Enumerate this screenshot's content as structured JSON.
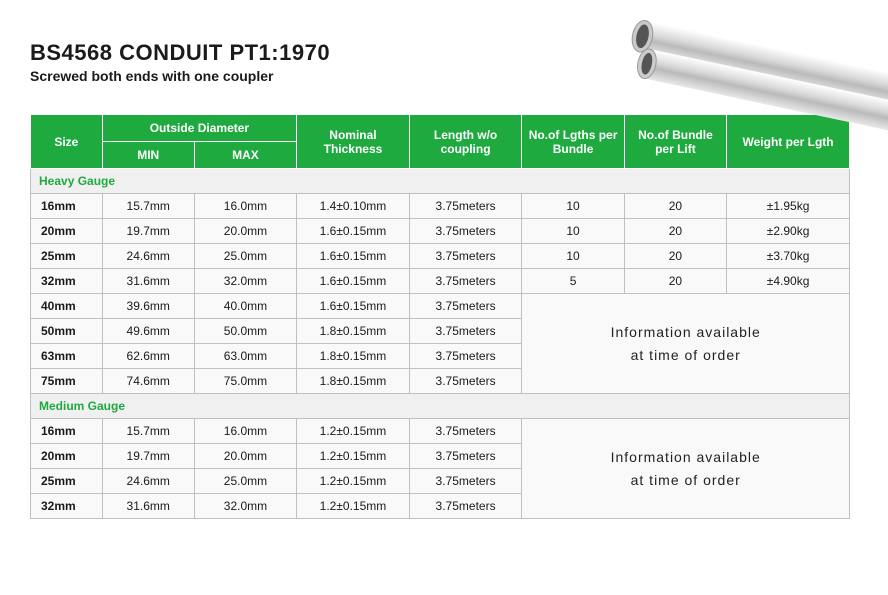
{
  "title": "BS4568 CONDUIT PT1:1970",
  "subtitle": "Screwed both ends with one coupler",
  "colors": {
    "header_bg": "#1eaa3f",
    "header_text": "#ffffff",
    "border": "#c0c0c0",
    "cell_bg": "#f9f9f9",
    "section_bg": "#f0f0f0",
    "section_text": "#1eaa3f",
    "text": "#1a1a1a"
  },
  "headers": {
    "size": "Size",
    "od_group": "Outside Diameter",
    "min": "MIN",
    "max": "MAX",
    "thickness": "Nominal Thickness",
    "length": "Length w/o coupling",
    "lgths": "No.of Lgths per Bundle",
    "bundle": "No.of Bundle per Lift",
    "weight": "Weight per Lgth"
  },
  "sections": [
    {
      "label": "Heavy Gauge",
      "rows": [
        {
          "size": "16mm",
          "min": "15.7mm",
          "max": "16.0mm",
          "thick": "1.4±0.10mm",
          "len": "3.75meters",
          "lgths": "10",
          "bundle": "20",
          "weight": "±1.95kg"
        },
        {
          "size": "20mm",
          "min": "19.7mm",
          "max": "20.0mm",
          "thick": "1.6±0.15mm",
          "len": "3.75meters",
          "lgths": "10",
          "bundle": "20",
          "weight": "±2.90kg"
        },
        {
          "size": "25mm",
          "min": "24.6mm",
          "max": "25.0mm",
          "thick": "1.6±0.15mm",
          "len": "3.75meters",
          "lgths": "10",
          "bundle": "20",
          "weight": "±3.70kg"
        },
        {
          "size": "32mm",
          "min": "31.6mm",
          "max": "32.0mm",
          "thick": "1.6±0.15mm",
          "len": "3.75meters",
          "lgths": "5",
          "bundle": "20",
          "weight": "±4.90kg"
        }
      ],
      "info_rows": [
        {
          "size": "40mm",
          "min": "39.6mm",
          "max": "40.0mm",
          "thick": "1.6±0.15mm",
          "len": "3.75meters"
        },
        {
          "size": "50mm",
          "min": "49.6mm",
          "max": "50.0mm",
          "thick": "1.8±0.15mm",
          "len": "3.75meters"
        },
        {
          "size": "63mm",
          "min": "62.6mm",
          "max": "63.0mm",
          "thick": "1.8±0.15mm",
          "len": "3.75meters"
        },
        {
          "size": "75mm",
          "min": "74.6mm",
          "max": "75.0mm",
          "thick": "1.8±0.15mm",
          "len": "3.75meters"
        }
      ],
      "info_text_line1": "Information available",
      "info_text_line2": "at  time  of  order"
    },
    {
      "label": "Medium   Gauge",
      "rows": [],
      "info_rows": [
        {
          "size": "16mm",
          "min": "15.7mm",
          "max": "16.0mm",
          "thick": "1.2±0.15mm",
          "len": "3.75meters"
        },
        {
          "size": "20mm",
          "min": "19.7mm",
          "max": "20.0mm",
          "thick": "1.2±0.15mm",
          "len": "3.75meters"
        },
        {
          "size": "25mm",
          "min": "24.6mm",
          "max": "25.0mm",
          "thick": "1.2±0.15mm",
          "len": "3.75meters"
        },
        {
          "size": "32mm",
          "min": "31.6mm",
          "max": "32.0mm",
          "thick": "1.2±0.15mm",
          "len": "3.75meters"
        }
      ],
      "info_text_line1": "Information available",
      "info_text_line2": "at  time  of  order"
    }
  ]
}
